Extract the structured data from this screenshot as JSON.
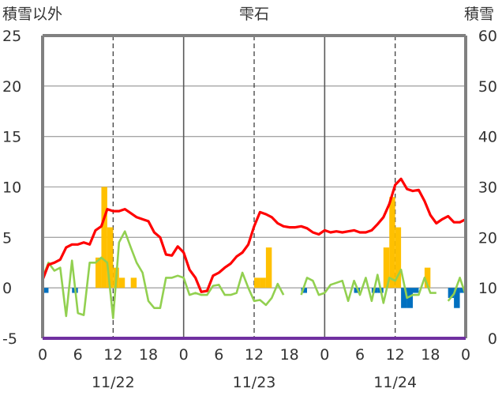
{
  "chart_data": {
    "type": "bar+line",
    "title": "雫石",
    "y_left_label": "積雪以外",
    "y_right_label": "積雪",
    "y_left_ticks": [
      "25",
      "20",
      "15",
      "10",
      "5",
      "0",
      "-5"
    ],
    "y_right_ticks": [
      "60",
      "50",
      "40",
      "30",
      "20",
      "10",
      "0"
    ],
    "y_left_lim": [
      -5,
      25
    ],
    "y_right_lim": [
      0,
      60
    ],
    "x_hour_ticks": [
      "0",
      "6",
      "12",
      "18",
      "0",
      "6",
      "12",
      "18",
      "0",
      "6",
      "12",
      "18",
      "0"
    ],
    "day_labels": [
      "11/22",
      "11/23",
      "11/24"
    ],
    "series": [
      {
        "kind": "bar-positive",
        "color": "#FFC000",
        "values": [
          0,
          0,
          0,
          0,
          0,
          0,
          0,
          0,
          0,
          3,
          10,
          6,
          2,
          1,
          0,
          1,
          0,
          0,
          0,
          0,
          0,
          0,
          0,
          0,
          0,
          0,
          0,
          0,
          0,
          0,
          0,
          0,
          0,
          0,
          0,
          0,
          1,
          1,
          4,
          0,
          0,
          0,
          0,
          0,
          0,
          0,
          0,
          0,
          0,
          0,
          0,
          0,
          0,
          0,
          0,
          0,
          0,
          0,
          4,
          9,
          6,
          0,
          0,
          0,
          0,
          2,
          0,
          0,
          0,
          0,
          0,
          0
        ]
      },
      {
        "kind": "bar-negative",
        "color": "#0070C0",
        "values": [
          -0.5,
          0,
          0,
          0,
          0,
          -0.5,
          0,
          0,
          0,
          0,
          0,
          0,
          0,
          0,
          0,
          0,
          0,
          0,
          0,
          0,
          0,
          0,
          0,
          0,
          0,
          0,
          0,
          0,
          0,
          0,
          0,
          0,
          0,
          0,
          0,
          0,
          0,
          0,
          0,
          0,
          0,
          0,
          0,
          0,
          -0.5,
          0,
          0,
          0,
          0,
          0,
          0,
          0,
          0,
          -0.5,
          0,
          0,
          -0.5,
          -0.5,
          0,
          0,
          0,
          -2,
          -2,
          -0.5,
          0,
          0,
          0,
          0,
          0,
          -1,
          -2,
          -0.5
        ]
      },
      {
        "kind": "line",
        "color": "#92D050",
        "values": [
          1,
          2.5,
          1.7,
          2,
          -2.8,
          2.7,
          -2.5,
          -2.7,
          2.5,
          2.5,
          3,
          2.5,
          -3,
          4.5,
          5.6,
          4,
          2.5,
          1.5,
          -1.3,
          -2,
          -2,
          1,
          1,
          1.2,
          1,
          -0.7,
          -0.5,
          -0.7,
          -0.7,
          0.2,
          0.3,
          -0.7,
          -0.7,
          -0.5,
          1.5,
          0,
          -1.3,
          -1.2,
          -1.7,
          -1,
          0.4,
          -0.7,
          null,
          null,
          -0.7,
          1,
          0.7,
          -0.7,
          -0.5,
          0.3,
          0.5,
          0.7,
          -1.3,
          0.7,
          -0.7,
          1,
          -1.3,
          1.3,
          -1.5,
          1,
          0.7,
          1.8,
          -1,
          -0.7,
          -0.7,
          1,
          -0.5,
          -0.5,
          null,
          -1.3,
          -0.6,
          1,
          -0.7
        ]
      },
      {
        "kind": "line",
        "color": "#FF0000",
        "values": [
          0.8,
          2.3,
          2.5,
          2.8,
          4,
          4.3,
          4.3,
          4.5,
          4.3,
          5.7,
          6.1,
          7.8,
          7.6,
          7.6,
          7.8,
          7.4,
          7,
          6.8,
          6.6,
          5.5,
          5,
          3.3,
          3.2,
          4.1,
          3.5,
          1.8,
          1,
          -0.4,
          -0.3,
          1.2,
          1.5,
          2,
          2.4,
          3.1,
          3.5,
          4.3,
          6.1,
          7.5,
          7.3,
          7,
          6.4,
          6.1,
          6,
          6,
          6.1,
          5.9,
          5.5,
          5.3,
          5.7,
          5.5,
          5.6,
          5.5,
          5.6,
          5.7,
          5.5,
          5.5,
          5.7,
          6.3,
          7,
          8.3,
          10.2,
          10.8,
          9.8,
          9.6,
          9.7,
          8.6,
          7.2,
          6.4,
          6.8,
          7.1,
          6.5,
          6.5,
          6.8
        ]
      }
    ],
    "colors": {
      "frame": "#808080",
      "grid": "#a6a6a6",
      "vline_day": "#595959",
      "vline_noon": "#404040",
      "axis_bottom": "#7030A0"
    }
  }
}
